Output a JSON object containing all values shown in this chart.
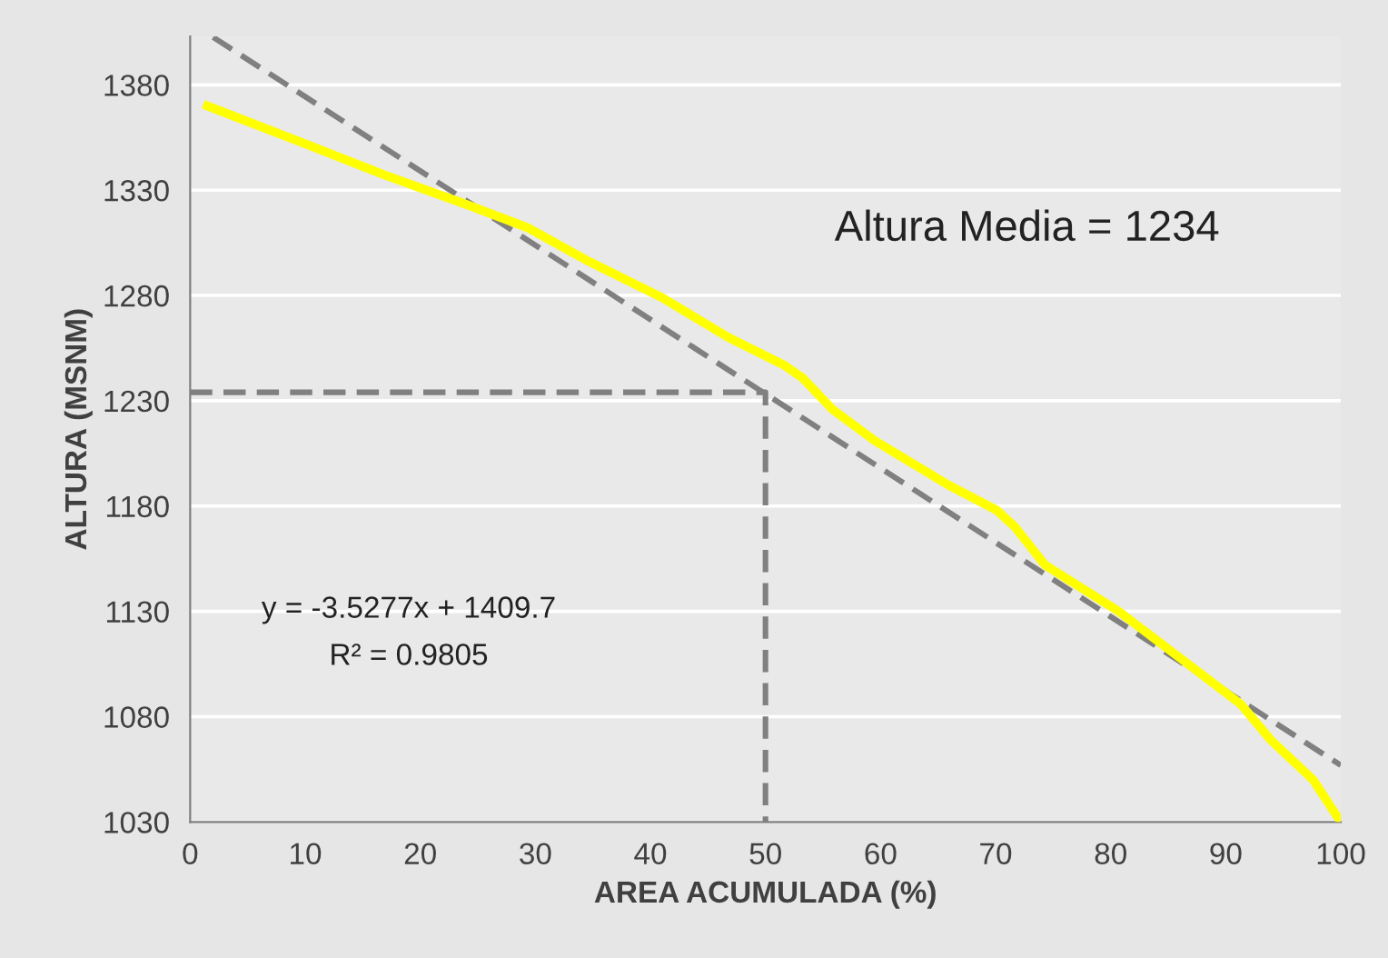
{
  "chart_data": {
    "type": "line",
    "xlabel": "AREA ACUMULADA (%)",
    "ylabel": "ALTURA (MSNM)",
    "xlim": [
      0,
      100
    ],
    "xticks": [
      0,
      10,
      20,
      30,
      40,
      50,
      60,
      70,
      80,
      90,
      100
    ],
    "ylim": [
      1030,
      1403
    ],
    "yticks": [
      1030,
      1080,
      1130,
      1180,
      1230,
      1280,
      1330,
      1380
    ],
    "grid": "y",
    "legend": false,
    "series": [
      {
        "color": "#ffff00",
        "x": [
          1.5,
          10,
          17,
          24.1,
          29.4,
          34.7,
          41,
          46.8,
          51.6,
          53.2,
          55.8,
          59.5,
          65.9,
          70.1,
          71.7,
          74.3,
          80.7,
          86,
          91.3,
          93.9,
          97.6,
          100
        ],
        "values": [
          1370,
          1352,
          1337,
          1323,
          1312,
          1296,
          1279,
          1260,
          1247,
          1241,
          1226,
          1211,
          1190,
          1178,
          1170,
          1152,
          1130,
          1108,
          1086,
          1069,
          1050,
          1030
        ]
      },
      {
        "color": "#808080",
        "line_style": "dashed",
        "x": [
          2,
          100
        ],
        "values": [
          1402.6,
          1056.9
        ]
      },
      {
        "color": "#808080",
        "line_style": "dashed",
        "x": [
          0,
          50,
          50
        ],
        "values": [
          1234,
          1234,
          1030
        ]
      }
    ],
    "annotations": [
      "Altura Media = 1234",
      "y = -3.5277x + 1409.7",
      "R² = 0.9805"
    ]
  }
}
